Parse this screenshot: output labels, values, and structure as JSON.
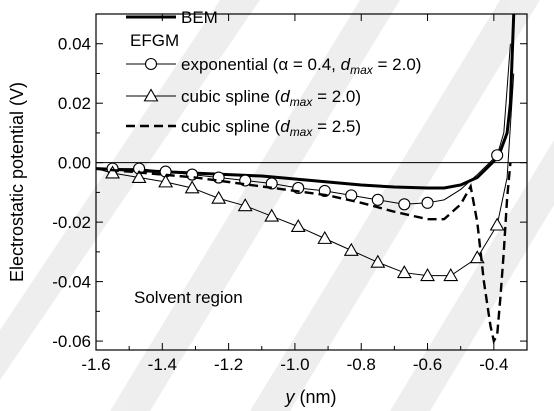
{
  "chart_data": {
    "type": "line",
    "xlabel": "y (nm)",
    "ylabel": "Electrostatic potential (V)",
    "xlim": [
      -1.6,
      -0.3
    ],
    "ylim": [
      -0.063,
      0.05
    ],
    "x_ticks": [
      -1.6,
      -1.4,
      -1.2,
      -1.0,
      -0.8,
      -0.6,
      -0.4
    ],
    "x_tick_labels": [
      "-1.6",
      "-1.4",
      "-1.2",
      "-1.0",
      "-0.8",
      "-0.6",
      "-0.4"
    ],
    "y_ticks": [
      0.04,
      0.02,
      0.0,
      -0.02,
      -0.04,
      -0.06
    ],
    "y_tick_labels": [
      "0.04",
      "0.02",
      "0.00",
      "-0.02",
      "-0.04",
      "-0.06"
    ],
    "legend_placement": "top-left",
    "legend_group_label": "EFGM",
    "annotation": "Solvent region",
    "series": [
      {
        "name": "BEM",
        "style": "solid-thick",
        "color": "#000000",
        "x": [
          -1.6,
          -1.5,
          -1.4,
          -1.3,
          -1.2,
          -1.1,
          -1.0,
          -0.9,
          -0.8,
          -0.7,
          -0.6,
          -0.55,
          -0.5,
          -0.45,
          -0.4,
          -0.38,
          -0.36,
          -0.35,
          -0.345,
          -0.34
        ],
        "y": [
          -0.002,
          -0.0025,
          -0.003,
          -0.0035,
          -0.004,
          -0.0045,
          -0.0055,
          -0.0065,
          -0.0075,
          -0.0082,
          -0.0085,
          -0.0085,
          -0.0075,
          -0.005,
          0.0005,
          0.004,
          0.01,
          0.02,
          0.035,
          0.05
        ]
      },
      {
        "name": "exponential (α = 0.4, d_max = 2.0)",
        "legend_parts": [
          "exponential (",
          "α",
          " = 0.4, ",
          "d",
          "max",
          " = 2.0)"
        ],
        "style": "solid-thin",
        "marker": "circle",
        "color": "#000000",
        "x": [
          -1.55,
          -1.47,
          -1.39,
          -1.31,
          -1.23,
          -1.15,
          -1.07,
          -0.99,
          -0.91,
          -0.83,
          -0.75,
          -0.67,
          -0.6,
          -0.55,
          -0.5,
          -0.45,
          -0.39,
          -0.37,
          -0.35
        ],
        "y": [
          -0.002,
          -0.002,
          -0.003,
          -0.004,
          -0.005,
          -0.006,
          -0.007,
          -0.0085,
          -0.0095,
          -0.011,
          -0.0125,
          -0.014,
          -0.0135,
          -0.0125,
          -0.009,
          -0.004,
          0.0025,
          0.01,
          0.04
        ],
        "marker_x": [
          -1.55,
          -1.47,
          -1.39,
          -1.31,
          -1.23,
          -1.15,
          -1.07,
          -0.99,
          -0.91,
          -0.83,
          -0.75,
          -0.67,
          -0.6,
          -0.39
        ]
      },
      {
        "name": "cubic spline (d_max = 2.0)",
        "legend_parts": [
          "cubic spline (",
          "d",
          "max",
          " = 2.0)"
        ],
        "style": "solid-thin",
        "marker": "triangle",
        "color": "#000000",
        "x": [
          -1.6,
          -1.55,
          -1.47,
          -1.39,
          -1.31,
          -1.23,
          -1.15,
          -1.07,
          -0.99,
          -0.91,
          -0.83,
          -0.75,
          -0.67,
          -0.6,
          -0.53,
          -0.45,
          -0.39,
          -0.36,
          -0.34
        ],
        "y": [
          -0.002,
          -0.0035,
          -0.005,
          -0.0065,
          -0.0085,
          -0.012,
          -0.0145,
          -0.018,
          -0.0215,
          -0.0255,
          -0.0295,
          -0.0335,
          -0.037,
          -0.038,
          -0.038,
          -0.032,
          -0.021,
          -0.005,
          0.03
        ],
        "marker_x": [
          -1.55,
          -1.47,
          -1.39,
          -1.31,
          -1.23,
          -1.15,
          -1.07,
          -0.99,
          -0.91,
          -0.83,
          -0.75,
          -0.67,
          -0.6,
          -0.53,
          -0.45,
          -0.39
        ]
      },
      {
        "name": "cubic spline (d_max = 2.5)",
        "legend_parts": [
          "cubic spline (",
          "d",
          "max",
          " = 2.5)"
        ],
        "style": "dashed",
        "color": "#000000",
        "x": [
          -1.6,
          -1.5,
          -1.4,
          -1.3,
          -1.2,
          -1.1,
          -1.0,
          -0.9,
          -0.8,
          -0.7,
          -0.6,
          -0.55,
          -0.5,
          -0.47,
          -0.45,
          -0.43,
          -0.41,
          -0.4,
          -0.39,
          -0.38,
          -0.37,
          -0.36,
          -0.35
        ],
        "y": [
          -0.002,
          -0.003,
          -0.004,
          -0.005,
          -0.0065,
          -0.008,
          -0.0095,
          -0.011,
          -0.0135,
          -0.0165,
          -0.019,
          -0.019,
          -0.014,
          -0.008,
          -0.02,
          -0.04,
          -0.055,
          -0.06,
          -0.058,
          -0.045,
          -0.03,
          -0.012,
          0.0
        ]
      }
    ]
  }
}
